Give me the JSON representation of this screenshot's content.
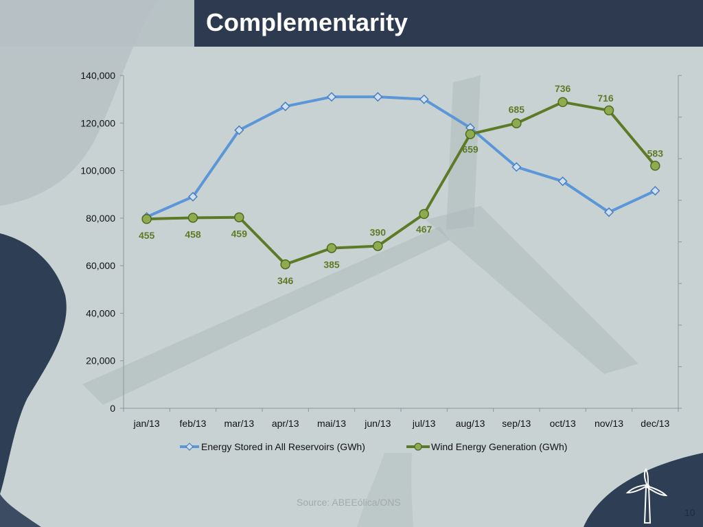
{
  "slide": {
    "title": "Complementarity",
    "source": "Source: ABEEólica/ONS",
    "page_number": "10"
  },
  "colors": {
    "reservoir": "#5a96d8",
    "wind": "#5d7a27",
    "title_bar": "#2d3a50"
  },
  "chart_data": {
    "type": "line",
    "categories": [
      "jan/13",
      "feb/13",
      "mar/13",
      "apr/13",
      "mai/13",
      "jun/13",
      "jul/13",
      "aug/13",
      "sep/13",
      "oct/13",
      "nov/13",
      "dec/13"
    ],
    "ylim": [
      0,
      140000
    ],
    "yticks": [
      0,
      20000,
      40000,
      60000,
      80000,
      100000,
      120000,
      140000
    ],
    "ytick_labels": [
      "0",
      "20,000",
      "40,000",
      "60,000",
      "80,000",
      "100,000",
      "120,000",
      "140,000"
    ],
    "legend_position": "bottom",
    "grid": false,
    "series": [
      {
        "name": "Energy Stored in All Reservoirs (GWh)",
        "marker": "diamond",
        "values": [
          80500,
          89000,
          117000,
          127000,
          131000,
          131000,
          130000,
          118000,
          101500,
          95500,
          82500,
          91500
        ]
      },
      {
        "name": "Wind Energy Generation (GWh)",
        "marker": "circle",
        "values": [
          455,
          458,
          459,
          346,
          385,
          390,
          467,
          659,
          685,
          736,
          716,
          583
        ],
        "labels": [
          "455",
          "458",
          "459",
          "346",
          "385",
          "390",
          "467",
          "659",
          "685",
          "736",
          "716",
          "583"
        ],
        "secondary_ylim": [
          0,
          800
        ]
      }
    ]
  }
}
